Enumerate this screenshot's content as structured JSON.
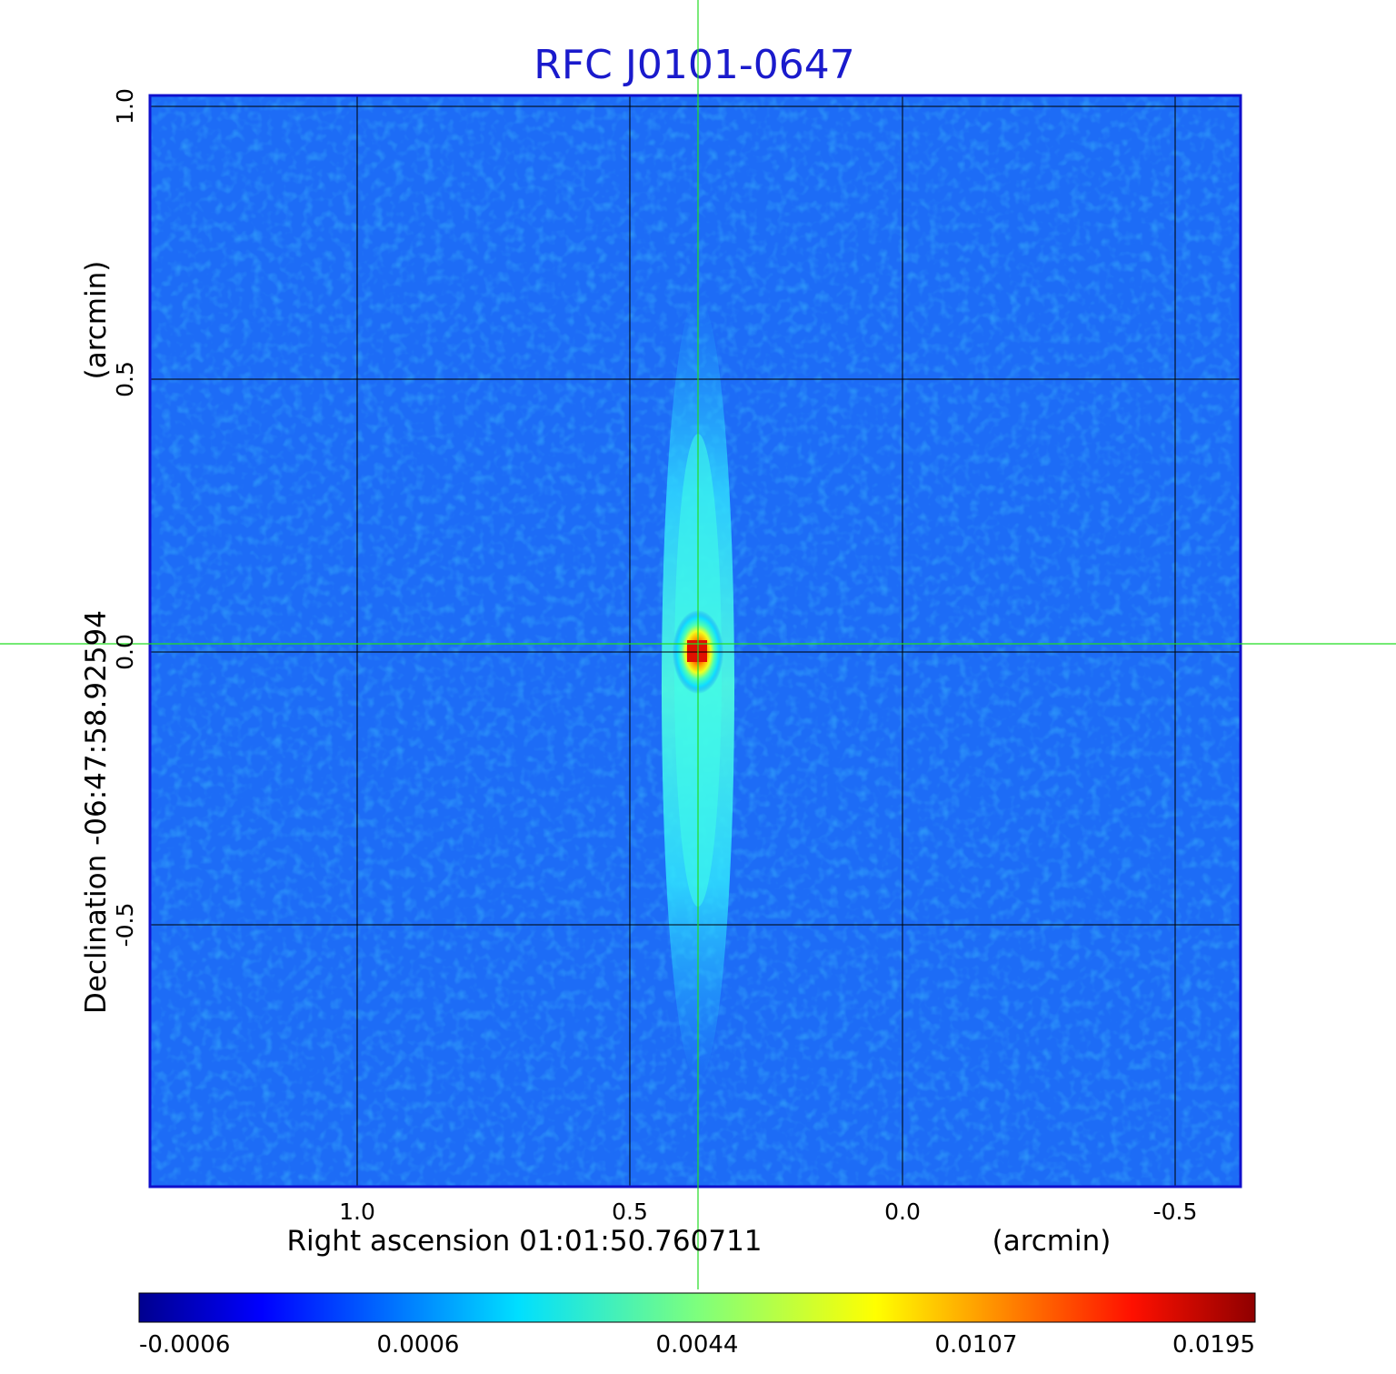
{
  "chart_data": {
    "type": "heatmap",
    "title": "RFC J0101-0647",
    "xlabel": "Right ascension  01:01:50.760711",
    "xunit": "(arcmin)",
    "ylabel": "Declination  -06:47:58.92594",
    "yunit": "(arcmin)",
    "xlim": [
      1.38,
      -0.62
    ],
    "ylim": [
      -0.98,
      1.02
    ],
    "x_ticks": [
      {
        "value": 1.0,
        "label": "1.0"
      },
      {
        "value": 0.5,
        "label": "0.5"
      },
      {
        "value": 0.0,
        "label": "0.0"
      },
      {
        "value": -0.5,
        "label": "-0.5"
      }
    ],
    "y_ticks": [
      {
        "value": 1.0,
        "label": "1.0"
      },
      {
        "value": 0.5,
        "label": "0.5"
      },
      {
        "value": 0.0,
        "label": "0.0"
      },
      {
        "value": -0.5,
        "label": "-0.5"
      }
    ],
    "grid": true,
    "crosshair": {
      "x": 0.375,
      "y": 0.015
    },
    "source": {
      "x": 0.375,
      "y": 0.0,
      "peak": 0.0195
    },
    "colormap": "jet",
    "colorbar": {
      "position": "bottom",
      "tick_labels": [
        "-0.0006",
        "0.0006",
        "0.0044",
        "0.0107",
        "0.0195"
      ]
    },
    "colors": {
      "title": "#1a1acc",
      "grid": "#000000",
      "crosshair": "#22dd22",
      "frame": "#1010cc"
    }
  }
}
